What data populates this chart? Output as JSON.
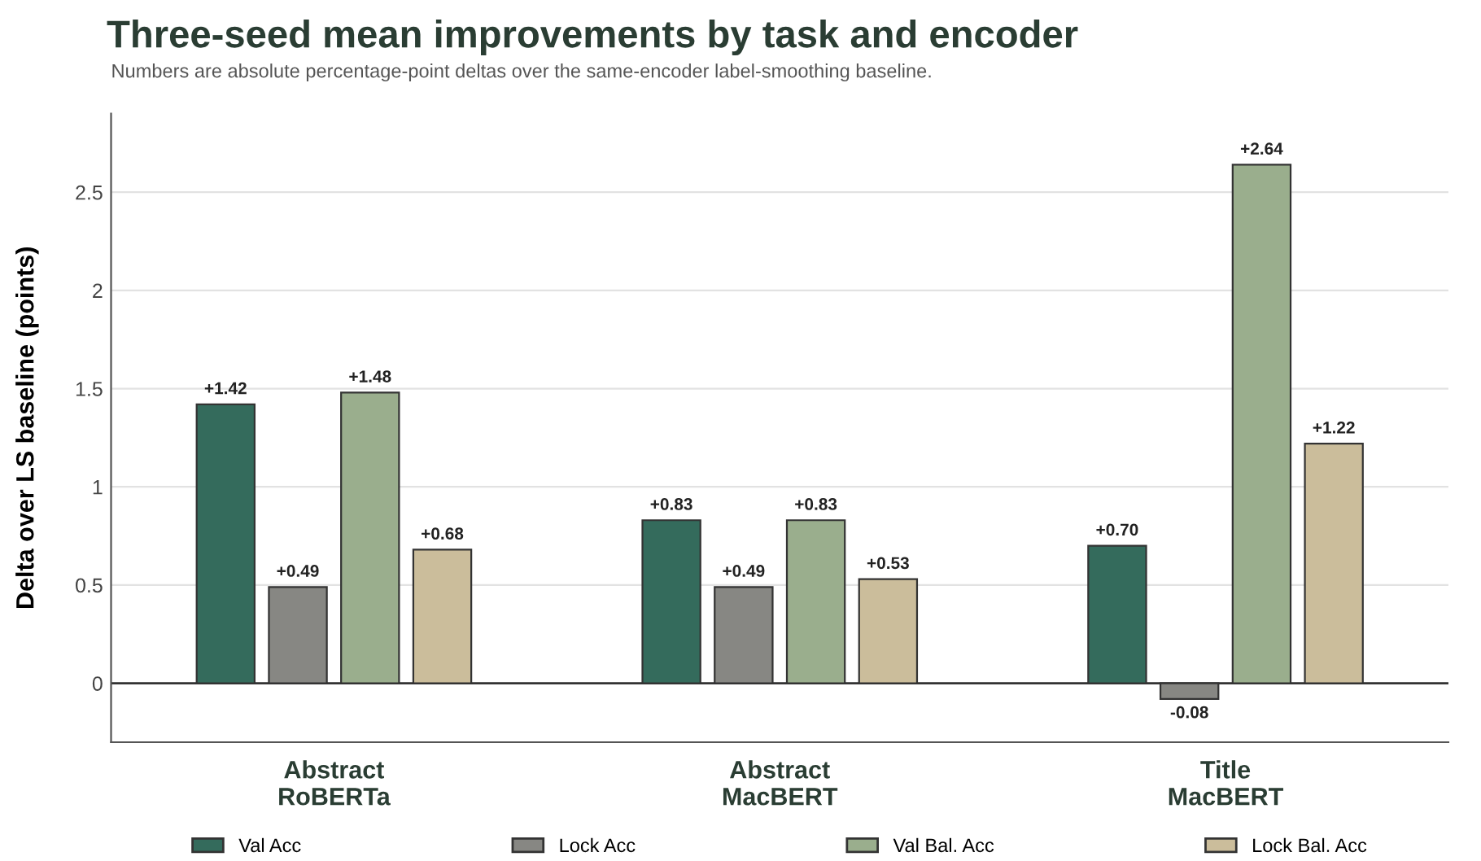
{
  "chart_data": {
    "type": "bar",
    "title": "Three-seed mean improvements by task and encoder",
    "subtitle": "Numbers are absolute percentage-point deltas over the same-encoder label-smoothing baseline.",
    "ylabel": "Delta over LS baseline (points)",
    "categories": [
      "Abstract\nRoBERTa",
      "Abstract\nMacBERT",
      "Title\nMacBERT"
    ],
    "series": [
      {
        "name": "Val Acc",
        "color": "#346b5c",
        "values": [
          1.42,
          0.83,
          0.7
        ],
        "value_labels": [
          "+1.42",
          "+0.83",
          "+0.70"
        ]
      },
      {
        "name": "Lock Acc",
        "color": "#878783",
        "values": [
          0.49,
          0.49,
          -0.08
        ],
        "value_labels": [
          "+0.49",
          "+0.49",
          "-0.08"
        ]
      },
      {
        "name": "Val Bal. Acc",
        "color": "#9aae8d",
        "values": [
          1.48,
          0.83,
          2.64
        ],
        "value_labels": [
          "+1.48",
          "+0.83",
          "+2.64"
        ]
      },
      {
        "name": "Lock Bal. Acc",
        "color": "#cbbd9b",
        "values": [
          0.68,
          0.53,
          1.22
        ],
        "value_labels": [
          "+0.68",
          "+0.53",
          "+1.22"
        ]
      }
    ],
    "ylim": [
      -0.3,
      2.9
    ],
    "yticks": [
      0,
      0.5,
      1,
      1.5,
      2,
      2.5
    ],
    "ref_lines": [
      {
        "axis": "y",
        "value": 0,
        "color": "#333333"
      }
    ],
    "grid": "y",
    "legend": "bottom"
  }
}
